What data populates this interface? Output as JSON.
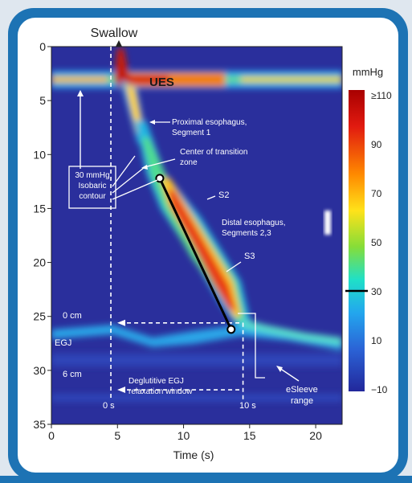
{
  "chart_data": {
    "type": "heatmap",
    "title": "Swallow",
    "xlabel": "Time (s)",
    "ylabel": "",
    "xlim": [
      0,
      22
    ],
    "ylim": [
      35,
      0
    ],
    "xticks": [
      0,
      5,
      10,
      15,
      20
    ],
    "yticks": [
      0,
      5,
      10,
      15,
      20,
      25,
      30,
      35
    ],
    "colorbar": {
      "label": "mmHg",
      "range": [
        -10,
        110
      ],
      "ticks": [
        "≥110",
        "90",
        "70",
        "50",
        "30",
        "10",
        "−10"
      ],
      "marker": 30
    },
    "annotations": {
      "ues": "UES",
      "proximal": [
        "Proximal esophagus,",
        "Segment 1"
      ],
      "transition": [
        "Center of transition",
        "zone"
      ],
      "isobaric": [
        "30 mmHg",
        "Isobaric",
        "contour"
      ],
      "s2": "S2",
      "distal": [
        "Distal esophagus,",
        "Segments 2,3"
      ],
      "s3": "S3",
      "zero_cm": "0 cm",
      "egj": "EGJ",
      "six_cm": "6 cm",
      "relaxation": [
        "Deglutitive EGJ",
        "relaxation window"
      ],
      "zero_s": "0 s",
      "ten_s": "10 s",
      "esleeve": [
        "eSleeve",
        "range"
      ]
    },
    "contraction_front": {
      "start": [
        8.2,
        12.2
      ],
      "end": [
        13.6,
        26.2
      ]
    },
    "relaxation_window": {
      "x": [
        4.5,
        14.5
      ],
      "y": [
        25.6,
        31.8
      ]
    }
  }
}
